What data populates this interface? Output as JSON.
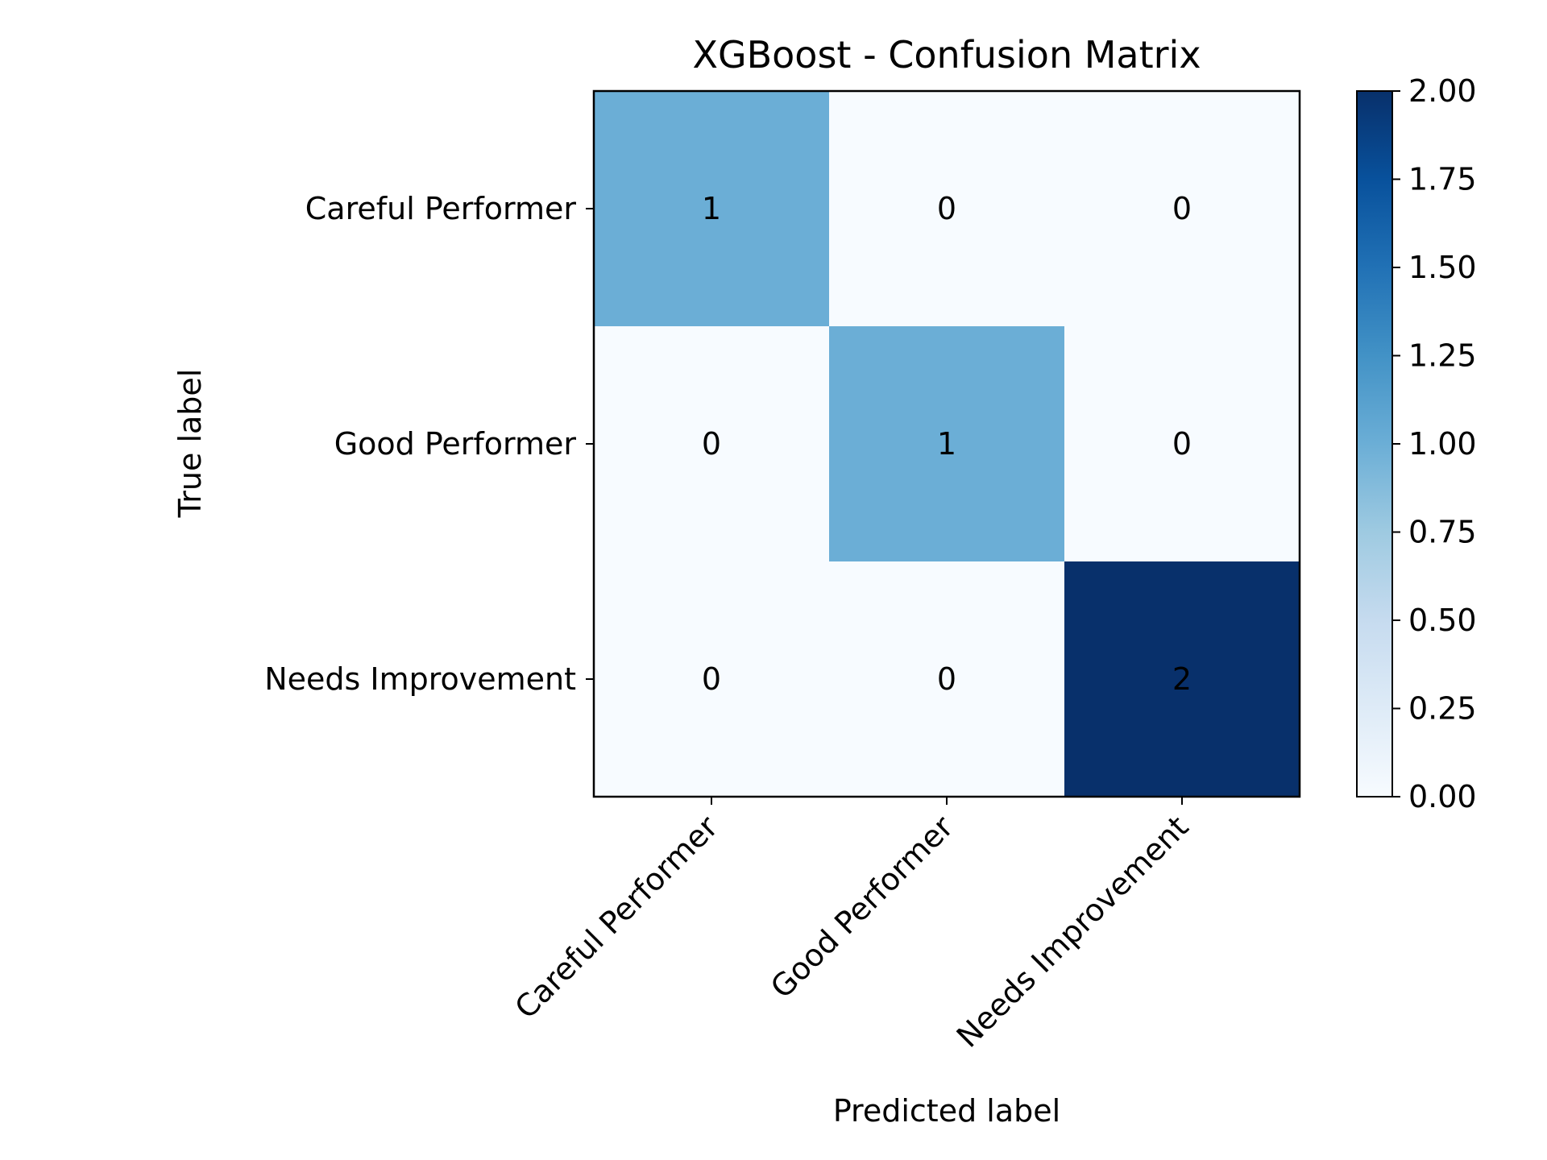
{
  "chart_data": {
    "type": "heatmap",
    "title": "XGBoost - Confusion Matrix",
    "xlabel": "Predicted label",
    "ylabel": "True label",
    "x_categories": [
      "Careful Performer",
      "Good Performer",
      "Needs Improvement"
    ],
    "y_categories": [
      "Careful Performer",
      "Good Performer",
      "Needs Improvement"
    ],
    "matrix": [
      [
        1,
        0,
        0
      ],
      [
        0,
        1,
        0
      ],
      [
        0,
        0,
        2
      ]
    ],
    "colormap": "Blues",
    "colorbar": {
      "range": [
        0,
        2
      ],
      "ticks": [
        "0.00",
        "0.25",
        "0.50",
        "0.75",
        "1.00",
        "1.25",
        "1.50",
        "1.75",
        "2.00"
      ]
    },
    "grid": false,
    "legend": "colorbar-right"
  }
}
